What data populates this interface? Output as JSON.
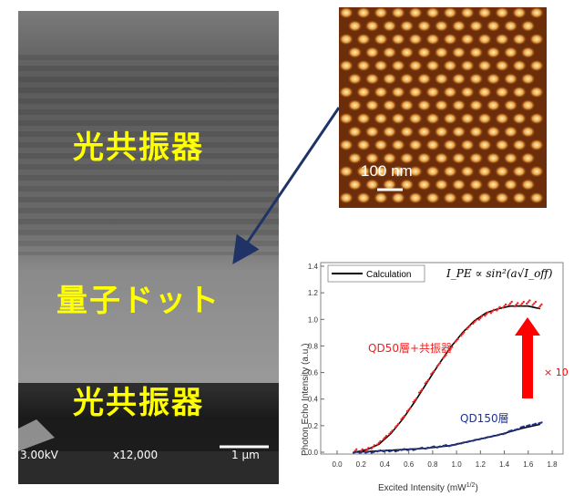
{
  "sem": {
    "label_top": "光共振器",
    "label_mid": "量子ドット",
    "label_bottom": "光共振器",
    "voltage": "3.00kV",
    "magnification": "x12,000",
    "scale_bar": "1 μm"
  },
  "afm": {
    "scale_bar": "100 nm"
  },
  "colors": {
    "label_yellow": "#ffff00",
    "arrow_navy": "#1f3366",
    "red_arrow": "#ff0000",
    "series_red": "#ee2222",
    "series_blue": "#22338a",
    "calc_line": "#000000"
  },
  "chart_data": {
    "type": "scatter",
    "xlabel": "Excited Intensity (mW",
    "xlabel_sup": "1/2",
    "xlabel_close": ")",
    "ylabel": "Photon Echo Intensity (a.u.)",
    "xlim": [
      0.0,
      1.8
    ],
    "ylim": [
      0.0,
      1.4
    ],
    "xticks": [
      "0.0",
      "0.2",
      "0.4",
      "0.6",
      "0.8",
      "1.0",
      "1.2",
      "1.4",
      "1.6",
      "1.8"
    ],
    "yticks": [
      "0.0",
      "0.2",
      "0.4",
      "0.6",
      "0.8",
      "1.0",
      "1.2",
      "1.4"
    ],
    "legend": "Calculation",
    "formula": "I_PE ∝ sin²(a√I_off)",
    "annotation_multiplier": "× 10",
    "series": [
      {
        "name": "QD50層+共振器",
        "color": "#ee2222",
        "x": [
          0.15,
          0.2,
          0.25,
          0.3,
          0.35,
          0.4,
          0.45,
          0.5,
          0.55,
          0.6,
          0.65,
          0.7,
          0.75,
          0.8,
          0.85,
          0.9,
          0.95,
          1.0,
          1.05,
          1.1,
          1.15,
          1.2,
          1.25,
          1.3,
          1.35,
          1.4,
          1.45,
          1.5,
          1.55,
          1.6,
          1.65,
          1.7
        ],
        "y": [
          0.01,
          0.01,
          0.02,
          0.04,
          0.07,
          0.11,
          0.15,
          0.2,
          0.26,
          0.32,
          0.39,
          0.46,
          0.53,
          0.6,
          0.66,
          0.72,
          0.78,
          0.84,
          0.89,
          0.94,
          0.98,
          1.01,
          1.04,
          1.06,
          1.08,
          1.1,
          1.12,
          1.11,
          1.12,
          1.13,
          1.12,
          1.1
        ]
      },
      {
        "name": "QD150層",
        "color": "#22338a",
        "x": [
          0.15,
          0.2,
          0.25,
          0.3,
          0.35,
          0.4,
          0.45,
          0.5,
          0.55,
          0.6,
          0.65,
          0.7,
          0.75,
          0.8,
          0.85,
          0.9,
          0.95,
          1.0,
          1.05,
          1.1,
          1.15,
          1.2,
          1.25,
          1.3,
          1.35,
          1.4,
          1.45,
          1.5,
          1.55,
          1.6,
          1.65,
          1.7
        ],
        "y": [
          0.0,
          0.0,
          0.0,
          0.0,
          0.01,
          0.01,
          0.01,
          0.01,
          0.02,
          0.02,
          0.02,
          0.03,
          0.03,
          0.04,
          0.04,
          0.05,
          0.05,
          0.06,
          0.07,
          0.08,
          0.09,
          0.1,
          0.11,
          0.12,
          0.13,
          0.14,
          0.16,
          0.17,
          0.19,
          0.2,
          0.21,
          0.22
        ]
      }
    ],
    "calc_red": {
      "x": [
        0.15,
        0.25,
        0.35,
        0.45,
        0.55,
        0.65,
        0.75,
        0.85,
        0.95,
        1.05,
        1.15,
        1.25,
        1.35,
        1.45,
        1.55,
        1.6,
        1.65,
        1.7
      ],
      "y": [
        0.0,
        0.02,
        0.06,
        0.14,
        0.25,
        0.38,
        0.52,
        0.66,
        0.79,
        0.9,
        0.99,
        1.05,
        1.08,
        1.1,
        1.1,
        1.1,
        1.09,
        1.08
      ]
    },
    "calc_blue": {
      "x": [
        0.15,
        0.35,
        0.55,
        0.75,
        0.95,
        1.15,
        1.35,
        1.55,
        1.7
      ],
      "y": [
        0.0,
        0.01,
        0.02,
        0.03,
        0.05,
        0.09,
        0.13,
        0.18,
        0.21
      ]
    }
  }
}
